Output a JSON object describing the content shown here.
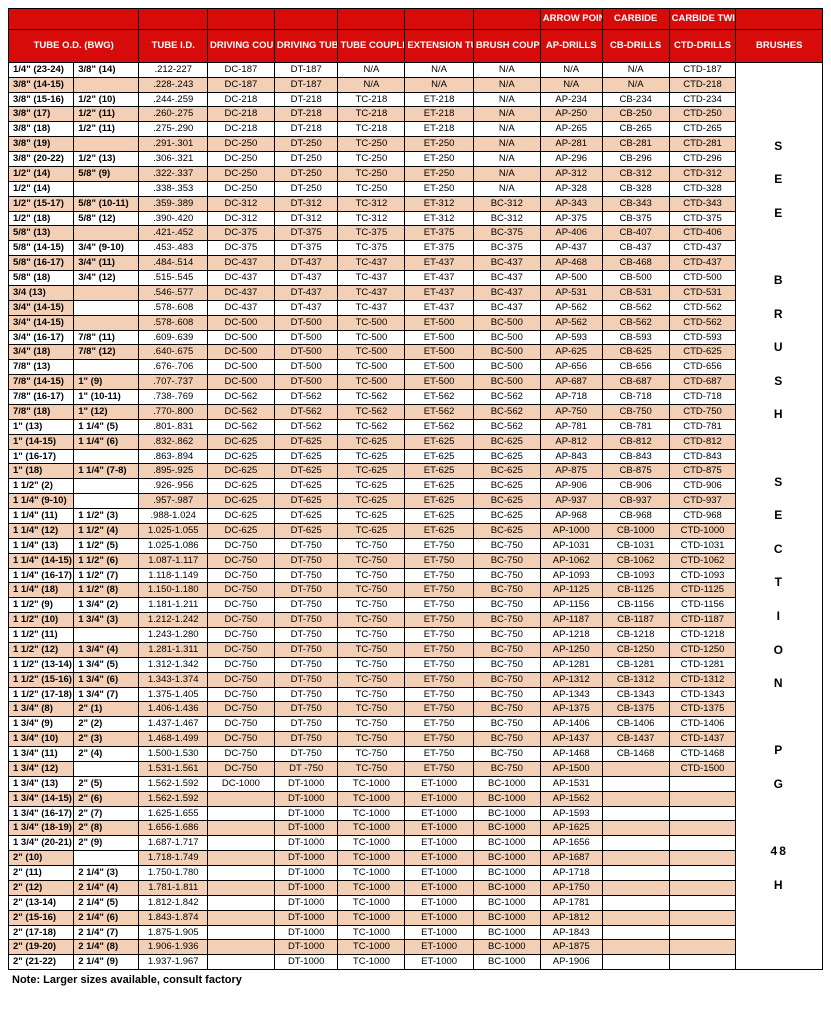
{
  "header": {
    "top": [
      "",
      "",
      "",
      "",
      "",
      "",
      "",
      "ARROW POINT",
      "CARBIDE",
      "CARBIDE TWIST",
      ""
    ],
    "sub": [
      "TUBE O.D. (BWG)",
      "TUBE I.D.",
      "DRIVING COUPLING",
      "DRIVING TUBE",
      "TUBE COUPLING",
      "EXTENSION TUBE",
      "BRUSH COUPLING",
      "AP-DRILLS",
      "CB-DRILLS",
      "CTD-DRILLS",
      "BRUSHES"
    ]
  },
  "brushes_text": "S\nE\nE\n\nB\nR\nU\nS\nH\n\nS\nE\nC\nT\nI\nO\nN\n\nP\nG\n\n48\nH",
  "note": "Note:  Larger sizes available, consult factory",
  "rows": [
    {
      "s": 0,
      "od1": "1/4\" (23-24)",
      "od2": "3/8\" (14)",
      "id": ".212-227",
      "dc": "DC-187",
      "dt": "DT-187",
      "tc": "N/A",
      "et": "N/A",
      "bc": "N/A",
      "ap": "N/A",
      "cb": "N/A",
      "ctd": "CTD-187"
    },
    {
      "s": 1,
      "od1": "3/8\" (14-15)",
      "od2": "",
      "id": ".228-.243",
      "dc": "DC-187",
      "dt": "DT-187",
      "tc": "N/A",
      "et": "N/A",
      "bc": "N/A",
      "ap": "N/A",
      "cb": "N/A",
      "ctd": "CTD-218"
    },
    {
      "s": 0,
      "od1": "3/8\" (15-16)",
      "od2": "1/2\" (10)",
      "id": ".244-.259",
      "dc": "DC-218",
      "dt": "DT-218",
      "tc": "TC-218",
      "et": "ET-218",
      "bc": "N/A",
      "ap": "AP-234",
      "cb": "CB-234",
      "ctd": "CTD-234"
    },
    {
      "s": 1,
      "od1": "3/8\" (17)",
      "od2": "1/2\" (11)",
      "id": ".260-.275",
      "dc": "DC-218",
      "dt": "DT-218",
      "tc": "TC-218",
      "et": "ET-218",
      "bc": "N/A",
      "ap": "AP-250",
      "cb": "CB-250",
      "ctd": "CTD-250"
    },
    {
      "s": 0,
      "od1": "3/8\" (18)",
      "od2": "1/2\" (11)",
      "id": ".275-.290",
      "dc": "DC-218",
      "dt": "DT-218",
      "tc": "TC-218",
      "et": "ET-218",
      "bc": "N/A",
      "ap": "AP-265",
      "cb": "CB-265",
      "ctd": "CTD-265"
    },
    {
      "s": 1,
      "od1": "3/8\" (19)",
      "od2": "",
      "id": ".291-.301",
      "dc": "DC-250",
      "dt": "DT-250",
      "tc": "TC-250",
      "et": "ET-250",
      "bc": "N/A",
      "ap": "AP-281",
      "cb": "CB-281",
      "ctd": "CTD-281"
    },
    {
      "s": 0,
      "od1": "3/8\" (20-22)",
      "od2": "1/2\" (13)",
      "id": ".306-.321",
      "dc": "DC-250",
      "dt": "DT-250",
      "tc": "TC-250",
      "et": "ET-250",
      "bc": "N/A",
      "ap": "AP-296",
      "cb": "CB-296",
      "ctd": "CTD-296"
    },
    {
      "s": 1,
      "od1": "1/2\" (14)",
      "od2": "5/8\" (9)",
      "id": ".322-.337",
      "dc": "DC-250",
      "dt": "DT-250",
      "tc": "TC-250",
      "et": "ET-250",
      "bc": "N/A",
      "ap": "AP-312",
      "cb": "CB-312",
      "ctd": "CTD-312"
    },
    {
      "s": 0,
      "od1": "1/2\" (14)",
      "od2": "",
      "id": ".338-.353",
      "dc": "DC-250",
      "dt": "DT-250",
      "tc": "TC-250",
      "et": "ET-250",
      "bc": "N/A",
      "ap": "AP-328",
      "cb": "CB-328",
      "ctd": "CTD-328"
    },
    {
      "s": 1,
      "od1": "1/2\" (15-17)",
      "od2": "5/8\" (10-11)",
      "id": ".359-.389",
      "dc": "DC-312",
      "dt": "DT-312",
      "tc": "TC-312",
      "et": "ET-312",
      "bc": "BC-312",
      "ap": "AP-343",
      "cb": "CB-343",
      "ctd": "CTD-343"
    },
    {
      "s": 0,
      "od1": "1/2\" (18)",
      "od2": "5/8\" (12)",
      "id": ".390-.420",
      "dc": "DC-312",
      "dt": "DT-312",
      "tc": "TC-312",
      "et": "ET-312",
      "bc": "BC-312",
      "ap": "AP-375",
      "cb": "CB-375",
      "ctd": "CTD-375"
    },
    {
      "s": 1,
      "od1": "5/8\" (13)",
      "od2": "",
      "id": ".421-.452",
      "dc": "DC-375",
      "dt": "DT-375",
      "tc": "TC-375",
      "et": "ET-375",
      "bc": "BC-375",
      "ap": "AP-406",
      "cb": "CB-407",
      "ctd": "CTD-406"
    },
    {
      "s": 0,
      "od1": "5/8\" (14-15)",
      "od2": "3/4\" (9-10)",
      "id": ".453-.483",
      "dc": "DC-375",
      "dt": "DT-375",
      "tc": "TC-375",
      "et": "ET-375",
      "bc": "BC-375",
      "ap": "AP-437",
      "cb": "CB-437",
      "ctd": "CTD-437"
    },
    {
      "s": 1,
      "od1": "5/8\" (16-17)",
      "od2": "3/4\" (11)",
      "id": ".484-.514",
      "dc": "DC-437",
      "dt": "DT-437",
      "tc": "TC-437",
      "et": "ET-437",
      "bc": "BC-437",
      "ap": "AP-468",
      "cb": "CB-468",
      "ctd": "CTD-437"
    },
    {
      "s": 0,
      "od1": "5/8\" (18)",
      "od2": "3/4\" (12)",
      "id": ".515-.545",
      "dc": "DC-437",
      "dt": "DT-437",
      "tc": "TC-437",
      "et": "ET-437",
      "bc": "BC-437",
      "ap": "AP-500",
      "cb": "CB-500",
      "ctd": "CTD-500"
    },
    {
      "s": 1,
      "od1": "3/4 (13)",
      "od2": "",
      "id": ".546-.577",
      "dc": "DC-437",
      "dt": "DT-437",
      "tc": "TC-437",
      "et": "ET-437",
      "bc": "BC-437",
      "ap": "AP-531",
      "cb": "CB-531",
      "ctd": "CTD-531"
    },
    {
      "s": 0,
      "od1": "3/4\" (14-15)",
      "od1shade": 1,
      "od2": "",
      "id": ".578-.608",
      "dc": "DC-437",
      "dt": "DT-437",
      "tc": "TC-437",
      "et": "ET-437",
      "bc": "BC-437",
      "ap": "AP-562",
      "cb": "CB-562",
      "ctd": "CTD-562"
    },
    {
      "s": 1,
      "od1": "3/4\" (14-15)",
      "od2": "",
      "id": ".578-.608",
      "dc": "DC-500",
      "dt": "DT-500",
      "tc": "TC-500",
      "et": "ET-500",
      "bc": "BC-500",
      "ap": "AP-562",
      "cb": "CB-562",
      "ctd": "CTD-562"
    },
    {
      "s": 0,
      "od1": "3/4\" (16-17)",
      "od2": "7/8\" (11)",
      "id": ".609-.639",
      "dc": "DC-500",
      "dt": "DT-500",
      "tc": "TC-500",
      "et": "ET-500",
      "bc": "BC-500",
      "ap": "AP-593",
      "cb": "CB-593",
      "ctd": "CTD-593"
    },
    {
      "s": 1,
      "od1": "3/4\" (18)",
      "od2": "7/8\" (12)",
      "id": ".640-.675",
      "dc": "DC-500",
      "dt": "DT-500",
      "tc": "TC-500",
      "et": "ET-500",
      "bc": "BC-500",
      "ap": "AP-625",
      "cb": "CB-625",
      "ctd": "CTD-625"
    },
    {
      "s": 0,
      "od1": "7/8\" (13)",
      "od2": "",
      "id": ".676-.706",
      "dc": "DC-500",
      "dt": "DT-500",
      "tc": "TC-500",
      "et": "ET-500",
      "bc": "BC-500",
      "ap": "AP-656",
      "cb": "CB-656",
      "ctd": "CTD-656"
    },
    {
      "s": 1,
      "od1": "7/8\" (14-15)",
      "od2": "1\" (9)",
      "id": ".707-.737",
      "dc": "DC-500",
      "dt": "DT-500",
      "tc": "TC-500",
      "et": "ET-500",
      "bc": "BC-500",
      "ap": "AP-687",
      "cb": "CB-687",
      "ctd": "CTD-687"
    },
    {
      "s": 0,
      "od1": "7/8\" (16-17)",
      "od2": "1\" (10-11)",
      "id": ".738-.769",
      "dc": "DC-562",
      "dt": "DT-562",
      "tc": "TC-562",
      "et": "ET-562",
      "bc": "BC-562",
      "ap": "AP-718",
      "cb": "CB-718",
      "ctd": "CTD-718"
    },
    {
      "s": 1,
      "od1": "7/8\" (18)",
      "od2": "1\" (12)",
      "id": ".770-.800",
      "dc": "DC-562",
      "dt": "DT-562",
      "tc": "TC-562",
      "et": "ET-562",
      "bc": "BC-562",
      "ap": "AP-750",
      "cb": "CB-750",
      "ctd": "CTD-750"
    },
    {
      "s": 0,
      "od1": "1\" (13)",
      "od2": "1 1/4\" (5)",
      "id": ".801-.831",
      "dc": "DC-562",
      "dt": "DT-562",
      "tc": "TC-562",
      "et": "ET-562",
      "bc": "BC-562",
      "ap": "AP-781",
      "cb": "CB-781",
      "ctd": "CTD-781"
    },
    {
      "s": 1,
      "od1": "1\" (14-15)",
      "od2": "1 1/4\" (6)",
      "id": ".832-.862",
      "dc": "DC-625",
      "dt": "DT-625",
      "tc": "TC-625",
      "et": "ET-625",
      "bc": "BC-625",
      "ap": "AP-812",
      "cb": "CB-812",
      "ctd": "CTD-812"
    },
    {
      "s": 0,
      "od1": "1\" (16-17)",
      "od2": "",
      "id": ".863-.894",
      "dc": "DC-625",
      "dt": "DT-625",
      "tc": "TC-625",
      "et": "ET-625",
      "bc": "BC-625",
      "ap": "AP-843",
      "cb": "CB-843",
      "ctd": "CTD-843"
    },
    {
      "s": 1,
      "od1": "1\" (18)",
      "od2": "1 1/4\" (7-8)",
      "id": ".895-.925",
      "dc": "DC-625",
      "dt": "DT-625",
      "tc": "TC-625",
      "et": "ET-625",
      "bc": "BC-625",
      "ap": "AP-875",
      "cb": "CB-875",
      "ctd": "CTD-875"
    },
    {
      "s": 0,
      "od1": "1 1/2\" (2)",
      "od2": "",
      "id": ".926-.956",
      "dc": "DC-625",
      "dt": "DT-625",
      "tc": "TC-625",
      "et": "ET-625",
      "bc": "BC-625",
      "ap": "AP-906",
      "cb": "CB-906",
      "ctd": "CTD-906"
    },
    {
      "s": 1,
      "od1": "1 1/4\" (9-10)",
      "od2": "",
      "od2plain": 1,
      "id": ".957-.987",
      "dc": "DC-625",
      "dt": "DT-625",
      "tc": "TC-625",
      "et": "ET-625",
      "bc": "BC-625",
      "ap": "AP-937",
      "cb": "CB-937",
      "ctd": "CTD-937"
    },
    {
      "s": 0,
      "od1": "1 1/4\" (11)",
      "od2": "1 1/2\" (3)",
      "id": ".988-1.024",
      "dc": "DC-625",
      "dt": "DT-625",
      "tc": "TC-625",
      "et": "ET-625",
      "bc": "BC-625",
      "ap": "AP-968",
      "cb": "CB-968",
      "ctd": "CTD-968"
    },
    {
      "s": 1,
      "od1": "1 1/4\" (12)",
      "od2": "1 1/2\" (4)",
      "id": "1.025-1.055",
      "dc": "DC-625",
      "dt": "DT-625",
      "tc": "TC-625",
      "et": "ET-625",
      "bc": "BC-625",
      "ap": "AP-1000",
      "cb": "CB-1000",
      "ctd": "CTD-1000"
    },
    {
      "s": 0,
      "od1": "1 1/4\" (13)",
      "od2": "1 1/2\" (5)",
      "id": "1.025-1.086",
      "dc": "DC-750",
      "dt": "DT-750",
      "tc": "TC-750",
      "et": "ET-750",
      "bc": "BC-750",
      "ap": "AP-1031",
      "cb": "CB-1031",
      "ctd": "CTD-1031"
    },
    {
      "s": 1,
      "od1": "1 1/4\" (14-15)",
      "od2": "1 1/2\" (6)",
      "id": "1.087-1.117",
      "dc": "DC-750",
      "dt": "DT-750",
      "tc": "TC-750",
      "et": "ET-750",
      "bc": "BC-750",
      "ap": "AP-1062",
      "cb": "CB-1062",
      "ctd": "CTD-1062"
    },
    {
      "s": 0,
      "od1": "1 1/4\" (16-17)",
      "od2": "1 1/2\" (7)",
      "id": "1.118-1.149",
      "dc": "DC-750",
      "dt": "DT-750",
      "tc": "TC-750",
      "et": "ET-750",
      "bc": "BC-750",
      "ap": "AP-1093",
      "cb": "CB-1093",
      "ctd": "CTD-1093"
    },
    {
      "s": 1,
      "od1": "1 1/4\" (18)",
      "od2": "1 1/2\" (8)",
      "id": "1.150-1.180",
      "dc": "DC-750",
      "dt": "DT-750",
      "tc": "TC-750",
      "et": "ET-750",
      "bc": "BC-750",
      "ap": "AP-1125",
      "cb": "CB-1125",
      "ctd": "CTD-1125"
    },
    {
      "s": 0,
      "od1": "1 1/2\" (9)",
      "od2": "1 3/4\" (2)",
      "id": "1.181-1.211",
      "dc": "DC-750",
      "dt": "DT-750",
      "tc": "TC-750",
      "et": "ET-750",
      "bc": "BC-750",
      "ap": "AP-1156",
      "cb": "CB-1156",
      "ctd": "CTD-1156"
    },
    {
      "s": 1,
      "od1": "1 1/2\" (10)",
      "od2": "1 3/4\" (3)",
      "id": "1.212-1.242",
      "dc": "DC-750",
      "dt": "DT-750",
      "tc": "TC-750",
      "et": "ET-750",
      "bc": "BC-750",
      "ap": "AP-1187",
      "cb": "CB-1187",
      "ctd": "CTD-1187"
    },
    {
      "s": 0,
      "od1": "1 1/2\" (11)",
      "od2": "",
      "id": "1.243-1.280",
      "dc": "DC-750",
      "dt": "DT-750",
      "tc": "TC-750",
      "et": "ET-750",
      "bc": "BC-750",
      "ap": "AP-1218",
      "cb": "CB-1218",
      "ctd": "CTD-1218"
    },
    {
      "s": 1,
      "od1": "1 1/2\" (12)",
      "od2": "1 3/4\" (4)",
      "id": "1.281-1.311",
      "dc": "DC-750",
      "dt": "DT-750",
      "tc": "TC-750",
      "et": "ET-750",
      "bc": "BC-750",
      "ap": "AP-1250",
      "cb": "CB-1250",
      "ctd": "CTD-1250"
    },
    {
      "s": 0,
      "od1": "1 1/2\" (13-14)",
      "od2": "1 3/4\" (5)",
      "id": "1.312-1.342",
      "dc": "DC-750",
      "dt": "DT-750",
      "tc": "TC-750",
      "et": "ET-750",
      "bc": "BC-750",
      "ap": "AP-1281",
      "cb": "CB-1281",
      "ctd": "CTD-1281"
    },
    {
      "s": 1,
      "od1": "1 1/2\" (15-16)",
      "od2": "1 3/4\" (6)",
      "id": "1.343-1.374",
      "dc": "DC-750",
      "dt": "DT-750",
      "tc": "TC-750",
      "et": "ET-750",
      "bc": "BC-750",
      "ap": "AP-1312",
      "cb": "CB-1312",
      "ctd": "CTD-1312"
    },
    {
      "s": 0,
      "od1": "1 1/2\" (17-18)",
      "od2": "1 3/4\" (7)",
      "id": "1.375-1.405",
      "dc": "DC-750",
      "dt": "DT-750",
      "tc": "TC-750",
      "et": "ET-750",
      "bc": "BC-750",
      "ap": "AP-1343",
      "cb": "CB-1343",
      "ctd": "CTD-1343"
    },
    {
      "s": 1,
      "od1": "1 3/4\" (8)",
      "od2": "2\" (1)",
      "id": "1.406-1.436",
      "dc": "DC-750",
      "dt": "DT-750",
      "tc": "TC-750",
      "et": "ET-750",
      "bc": "BC-750",
      "ap": "AP-1375",
      "cb": "CB-1375",
      "ctd": "CTD-1375"
    },
    {
      "s": 0,
      "od1": "1 3/4\" (9)",
      "od2": "2\" (2)",
      "id": "1.437-1.467",
      "dc": "DC-750",
      "dt": "DT-750",
      "tc": "TC-750",
      "et": "ET-750",
      "bc": "BC-750",
      "ap": "AP-1406",
      "cb": "CB-1406",
      "ctd": "CTD-1406"
    },
    {
      "s": 1,
      "od1": "1 3/4\" (10)",
      "od2": "2\" (3)",
      "id": "1.468-1.499",
      "dc": "DC-750",
      "dt": "DT-750",
      "tc": "TC-750",
      "et": "ET-750",
      "bc": "BC-750",
      "ap": "AP-1437",
      "cb": "CB-1437",
      "ctd": "CTD-1437"
    },
    {
      "s": 0,
      "od1": "1 3/4\" (11)",
      "od2": "2\" (4)",
      "id": "1.500-1.530",
      "dc": "DC-750",
      "dt": "DT-750",
      "tc": "TC-750",
      "et": "ET-750",
      "bc": "BC-750",
      "ap": "AP-1468",
      "cb": "CB-1468",
      "ctd": "CTD-1468"
    },
    {
      "s": 1,
      "od1": "1 3/4\" (12)",
      "od2": "",
      "od2plain": 1,
      "id": "1.531-1.561",
      "dc": "DC-750",
      "dt": "DT -750",
      "tc": "TC-750",
      "et": "ET-750",
      "bc": "BC-750",
      "ap": "AP-1500",
      "cb": "",
      "ctd": "CTD-1500"
    },
    {
      "s": 0,
      "od1": "1 3/4\" (13)",
      "od2": "2\" (5)",
      "id": "1.562-1.592",
      "dc": "DC-1000",
      "dt": "DT-1000",
      "tc": "TC-1000",
      "et": "ET-1000",
      "bc": "BC-1000",
      "ap": "AP-1531",
      "cb": "",
      "ctd": ""
    },
    {
      "s": 1,
      "od1": "1 3/4\" (14-15)",
      "od2": "2\" (6)",
      "id": "1.562-1.592",
      "dc": "",
      "dt": "DT-1000",
      "tc": "TC-1000",
      "et": "ET-1000",
      "bc": "BC-1000",
      "ap": "AP-1562",
      "cb": "",
      "ctd": ""
    },
    {
      "s": 0,
      "od1": "1 3/4\" (16-17)",
      "od2": "2\" (7)",
      "id": "1.625-1.655",
      "dc": "",
      "dt": "DT-1000",
      "tc": "TC-1000",
      "et": "ET-1000",
      "bc": "BC-1000",
      "ap": "AP-1593",
      "cb": "",
      "ctd": ""
    },
    {
      "s": 1,
      "od1": "1 3/4\" (18-19)",
      "od2": "2\" (8)",
      "id": "1.656-1.686",
      "dc": "",
      "dt": "DT-1000",
      "tc": "TC-1000",
      "et": "ET-1000",
      "bc": "BC-1000",
      "ap": "AP-1625",
      "cb": "",
      "ctd": ""
    },
    {
      "s": 0,
      "od1": "1 3/4\" (20-21)",
      "od2": "2\" (9)",
      "id": "1.687-1.717",
      "dc": "",
      "dt": "DT-1000",
      "tc": "TC-1000",
      "et": "ET-1000",
      "bc": "BC-1000",
      "ap": "AP-1656",
      "cb": "",
      "ctd": ""
    },
    {
      "s": 1,
      "od1": "2\" (10)",
      "od2": "",
      "od2plain": 1,
      "id": "1.718-1.749",
      "dc": "",
      "dt": "DT-1000",
      "tc": "TC-1000",
      "et": "ET-1000",
      "bc": "BC-1000",
      "ap": "AP-1687",
      "cb": "",
      "ctd": ""
    },
    {
      "s": 0,
      "od1": "2\" (11)",
      "od2": "2 1/4\" (3)",
      "id": "1.750-1.780",
      "dc": "",
      "dt": "DT-1000",
      "tc": "TC-1000",
      "et": "ET-1000",
      "bc": "BC-1000",
      "ap": "AP-1718",
      "cb": "",
      "ctd": ""
    },
    {
      "s": 1,
      "od1": "2\" (12)",
      "od2": "2 1/4\" (4)",
      "id": "1.781-1.811",
      "dc": "",
      "dt": "DT-1000",
      "tc": "TC-1000",
      "et": "ET-1000",
      "bc": "BC-1000",
      "ap": "AP-1750",
      "cb": "",
      "ctd": ""
    },
    {
      "s": 0,
      "od1": "2\" (13-14)",
      "od2": "2 1/4\" (5)",
      "id": "1.812-1.842",
      "dc": "",
      "dt": "DT-1000",
      "tc": "TC-1000",
      "et": "ET-1000",
      "bc": "BC-1000",
      "ap": "AP-1781",
      "cb": "",
      "ctd": ""
    },
    {
      "s": 1,
      "od1": "2\" (15-16)",
      "od2": "2 1/4\" (6)",
      "id": "1.843-1.874",
      "dc": "",
      "dt": "DT-1000",
      "tc": "TC-1000",
      "et": "ET-1000",
      "bc": "BC-1000",
      "ap": "AP-1812",
      "cb": "",
      "ctd": ""
    },
    {
      "s": 0,
      "od1": "2\" (17-18)",
      "od2": "2 1/4\" (7)",
      "id": "1.875-1.905",
      "dc": "",
      "dt": "DT-1000",
      "tc": "TC-1000",
      "et": "ET-1000",
      "bc": "BC-1000",
      "ap": "AP-1843",
      "cb": "",
      "ctd": ""
    },
    {
      "s": 1,
      "od1": "2\" (19-20)",
      "od2": "2 1/4\" (8)",
      "id": "1.906-1.936",
      "dc": "",
      "dt": "DT-1000",
      "tc": "TC-1000",
      "et": "ET-1000",
      "bc": "BC-1000",
      "ap": "AP-1875",
      "cb": "",
      "ctd": ""
    },
    {
      "s": 0,
      "od1": "2\" (21-22)",
      "od2": "2 1/4\" (9)",
      "id": "1.937-1.967",
      "dc": "",
      "dt": "DT-1000",
      "tc": "TC-1000",
      "et": "ET-1000",
      "bc": "BC-1000",
      "ap": "AP-1906",
      "cb": "",
      "ctd": ""
    }
  ],
  "colors": {
    "header_bg": "#d80b0b",
    "header_fg": "#ffffff",
    "shade_bg": "#f3cfb6",
    "border": "#000000"
  }
}
